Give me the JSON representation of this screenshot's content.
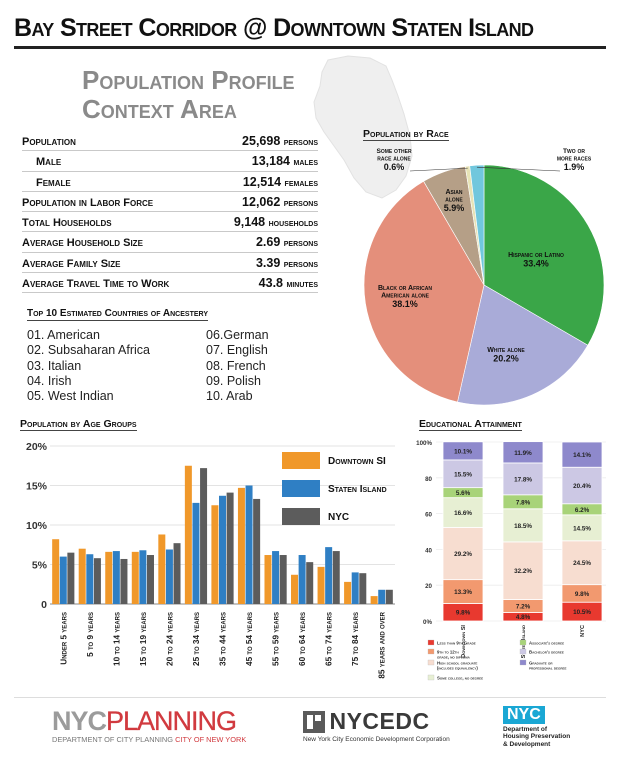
{
  "title": "Bay Street Corridor @ Downtown Staten Island",
  "context_title": [
    "Population Profile",
    "Context Area"
  ],
  "stats": [
    {
      "label": "Population",
      "value": "25,698",
      "unit": "persons",
      "indent": false
    },
    {
      "label": "Male",
      "value": "13,184",
      "unit": "males",
      "indent": true
    },
    {
      "label": "Female",
      "value": "12,514",
      "unit": "females",
      "indent": true
    },
    {
      "label": "Population in Labor Force",
      "value": "12,062",
      "unit": "persons",
      "indent": false
    },
    {
      "label": "Total Households",
      "value": "9,148",
      "unit": "households",
      "indent": false
    },
    {
      "label": "Average Household Size",
      "value": "2.69",
      "unit": "persons",
      "indent": false
    },
    {
      "label": "Average Family Size",
      "value": "3.39",
      "unit": "persons",
      "indent": false
    },
    {
      "label": "Average Travel Time to Work",
      "value": "43.8",
      "unit": "minutes",
      "indent": false
    }
  ],
  "ancestry": {
    "heading": "Top 10 Estimated Countries of Ancestery",
    "items": [
      "01. American",
      "02. Subsaharan Africa",
      "03. Italian",
      "04. Irish",
      "05. West Indian",
      "06.German",
      "07. English",
      "08. French",
      "09. Polish",
      "10. Arab"
    ]
  },
  "chart_data": [
    {
      "type": "pie",
      "title": "Population by Race",
      "slices": [
        {
          "label": "Hispanic or Latino",
          "value": 33.4,
          "display": "33.4%",
          "color": "#3aa648"
        },
        {
          "label": "White alone",
          "value": 20.2,
          "display": "20.2%",
          "color": "#a9abd8"
        },
        {
          "label": "Black or African American alone",
          "value": 38.1,
          "display": "38.1%",
          "color": "#e48f7b"
        },
        {
          "label": "Asian alone",
          "value": 5.9,
          "display": "5.9%",
          "color": "#b59f87"
        },
        {
          "label": "Some other race alone",
          "value": 0.6,
          "display": "0.6%",
          "color": "#e7e3b6"
        },
        {
          "label": "Two or more races",
          "value": 1.9,
          "display": "1.9%",
          "color": "#71c7dd"
        }
      ]
    },
    {
      "type": "bar",
      "title": "Population by Age Groups",
      "categories": [
        "Under 5 years",
        "5 to 9 years",
        "10 to 14 years",
        "15 to 19 years",
        "20 to 24 years",
        "25 to 34 years",
        "35 to 44 years",
        "45 to 54 years",
        "55 to 59 years",
        "60 to 64 years",
        "65 to 74 years",
        "75 to 84 years",
        "85 years and over"
      ],
      "series": [
        {
          "name": "Downtown SI",
          "color": "#f0982a",
          "values": [
            8.2,
            7.0,
            6.6,
            6.6,
            8.8,
            17.5,
            12.5,
            14.7,
            6.2,
            3.7,
            4.7,
            2.8,
            1.0
          ]
        },
        {
          "name": "Staten Island",
          "color": "#2f7fc4",
          "values": [
            6.0,
            6.3,
            6.7,
            6.8,
            6.9,
            12.8,
            13.7,
            15.0,
            6.7,
            6.2,
            7.2,
            4.0,
            1.8
          ]
        },
        {
          "name": "NYC",
          "color": "#5c5c5c",
          "values": [
            6.5,
            5.8,
            5.7,
            6.2,
            7.7,
            17.2,
            14.1,
            13.3,
            6.2,
            5.3,
            6.7,
            3.9,
            1.8
          ]
        }
      ],
      "y_ticks": [
        "0",
        "5%",
        "10%",
        "15%",
        "20%"
      ],
      "ylim": [
        0,
        20
      ]
    },
    {
      "type": "bar",
      "stacked": true,
      "title": "Educational Attainment",
      "categories": [
        "Downtown SI",
        "Staten Island",
        "NYC"
      ],
      "y_ticks": [
        "0%",
        "20",
        "40",
        "60",
        "80",
        "100%"
      ],
      "ylim": [
        0,
        100
      ],
      "series": [
        {
          "name": "Less than 9th Grade",
          "color": "#e8392f",
          "values": [
            9.8,
            4.8,
            10.5
          ]
        },
        {
          "name": "9th to 12th grade, no diploma",
          "color": "#f2996f",
          "values": [
            13.3,
            7.2,
            9.8
          ]
        },
        {
          "name": "High school graduate (includes equivalency)",
          "color": "#f7ddd0",
          "values": [
            29.2,
            32.2,
            24.5
          ]
        },
        {
          "name": "Some college, no degree",
          "color": "#e7efd3",
          "values": [
            16.6,
            18.5,
            14.5
          ]
        },
        {
          "name": "Associate's degree",
          "color": "#a8d379",
          "values": [
            5.6,
            7.8,
            6.2
          ]
        },
        {
          "name": "Bachelor's degree",
          "color": "#ccc8e4",
          "values": [
            15.5,
            17.8,
            20.4
          ]
        },
        {
          "name": "Graduate or professional degree",
          "color": "#8e89cc",
          "values": [
            10.1,
            11.9,
            14.1
          ]
        }
      ]
    }
  ],
  "footer": {
    "planning_nyc": "NYC",
    "planning_word": "PLANNING",
    "planning_sub": "DEPARTMENT OF CITY PLANNING",
    "planning_sub_red": "CITY OF NEW YORK",
    "edc_name": "NYCEDC",
    "edc_sub": "New York City Economic Development Corporation",
    "hpd_nyc": "NYC",
    "hpd_sub": "Department of Housing Preservation & Development"
  }
}
